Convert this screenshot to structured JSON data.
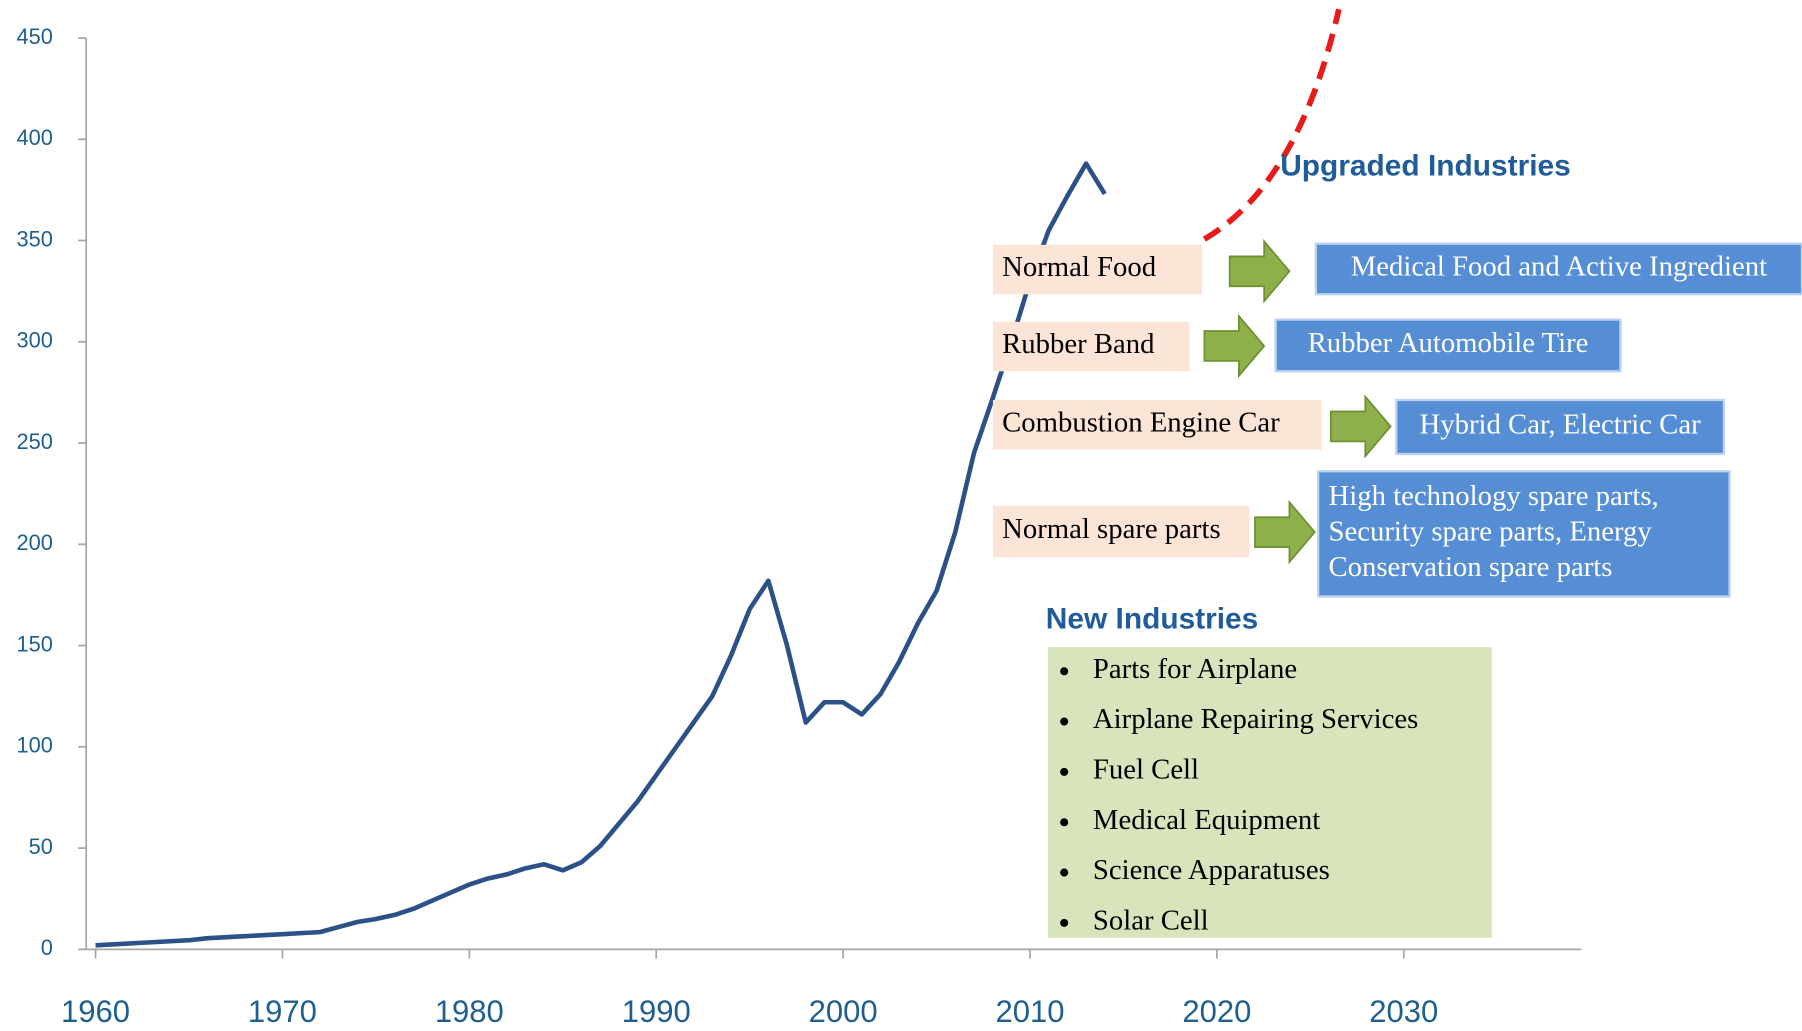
{
  "chart_data": {
    "type": "line",
    "x": [
      1960,
      1961,
      1962,
      1963,
      1964,
      1965,
      1966,
      1967,
      1968,
      1969,
      1970,
      1971,
      1972,
      1973,
      1974,
      1975,
      1976,
      1977,
      1978,
      1979,
      1980,
      1981,
      1982,
      1983,
      1984,
      1985,
      1986,
      1987,
      1988,
      1989,
      1990,
      1991,
      1992,
      1993,
      1994,
      1995,
      1996,
      1997,
      1998,
      1999,
      2000,
      2001,
      2002,
      2003,
      2004,
      2005,
      2006,
      2007,
      2008,
      2009,
      2010,
      2011,
      2012,
      2013,
      2014
    ],
    "series": [
      {
        "color": "#2b5188",
        "values": [
          2,
          2.5,
          3,
          3.5,
          4,
          4.5,
          5.5,
          6,
          6.5,
          7,
          7.5,
          8,
          8.5,
          11,
          13.5,
          15,
          17,
          20,
          24,
          28,
          32,
          35,
          37,
          40,
          42,
          39,
          43,
          51,
          62,
          73,
          86,
          99,
          112,
          125,
          145,
          168,
          182,
          150,
          112,
          122,
          122,
          116,
          126,
          142,
          161,
          177,
          206,
          245,
          272,
          300,
          330,
          355,
          372,
          388,
          373
        ]
      }
    ],
    "xlim": [
      1959.5,
      2039.5
    ],
    "xticks": [
      1960,
      1970,
      1980,
      1990,
      2000,
      2010,
      2020,
      2030
    ],
    "ylim": [
      0,
      450
    ],
    "yticks": [
      0,
      50,
      100,
      150,
      200,
      250,
      300,
      350,
      400,
      450
    ],
    "upgraded_title": "Upgraded Industries",
    "upgrades": [
      {
        "from": "Normal Food",
        "to": [
          "Medical Food and Active Ingredient"
        ]
      },
      {
        "from": "Rubber Band",
        "to": [
          "Rubber Automobile Tire"
        ]
      },
      {
        "from": "Combustion Engine Car",
        "to": [
          "Hybrid Car, Electric Car"
        ]
      },
      {
        "from": "Normal spare parts",
        "to": [
          " High technology spare parts,",
          "Security spare parts, Energy",
          "Conservation spare parts"
        ]
      }
    ],
    "new_title": "New Industries",
    "new_items": [
      "Parts for Airplane",
      "Airplane Repairing Services",
      "Fuel Cell",
      "Medical Equipment",
      "Science Apparatuses",
      "Solar Cell"
    ]
  }
}
